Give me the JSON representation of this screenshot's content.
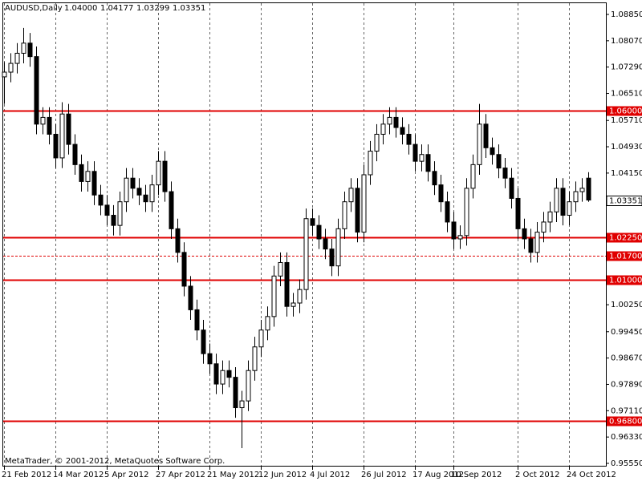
{
  "chart_data": {
    "type": "candlestick",
    "symbol": "AUDUSD,Daily",
    "ohlc_labels": [
      "1.04000",
      "1.04177",
      "1.03299",
      "1.03351"
    ],
    "copyright": "MetaTrader, © 2001-2012, MetaQuotes Software Corp.",
    "categories": [
      "21 Feb 2012",
      null,
      null,
      null,
      null,
      null,
      null,
      null,
      "14 Mar 2012",
      null,
      null,
      null,
      null,
      null,
      null,
      null,
      "5 Apr 2012",
      null,
      null,
      null,
      null,
      null,
      null,
      null,
      "27 Apr 2012",
      null,
      null,
      null,
      null,
      null,
      null,
      null,
      "21 May 2012",
      null,
      null,
      null,
      null,
      null,
      null,
      null,
      "12 Jun 2012",
      null,
      null,
      null,
      null,
      null,
      null,
      null,
      "4 Jul 2012",
      null,
      null,
      null,
      null,
      null,
      null,
      null,
      "26 Jul 2012",
      null,
      null,
      null,
      null,
      null,
      null,
      null,
      "17 Aug 2012",
      null,
      null,
      null,
      null,
      null,
      "10 Sep 2012",
      null,
      null,
      null,
      null,
      null,
      null,
      null,
      null,
      null,
      "2 Oct 2012",
      null,
      null,
      null,
      null,
      null,
      null,
      null,
      "24 Oct 2012",
      null,
      null,
      null
    ],
    "open": [
      1.07,
      1.0714,
      1.074,
      1.077,
      1.08,
      1.076,
      1.056,
      1.058,
      1.053,
      1.046,
      1.059,
      1.05,
      1.044,
      1.039,
      1.042,
      1.035,
      1.032,
      1.029,
      1.026,
      1.033,
      1.04,
      1.037,
      1.035,
      1.033,
      1.038,
      1.045,
      1.036,
      1.025,
      1.018,
      1.008,
      1.001,
      0.995,
      0.988,
      0.985,
      0.979,
      0.983,
      0.981,
      0.972,
      0.974,
      0.983,
      0.99,
      0.995,
      0.999,
      1.011,
      1.015,
      1.002,
      1.003,
      1.007,
      1.028,
      1.026,
      1.022,
      1.019,
      1.014,
      1.025,
      1.033,
      1.037,
      1.024,
      1.041,
      1.048,
      1.053,
      1.056,
      1.058,
      1.055,
      1.053,
      1.05,
      1.045,
      1.047,
      1.042,
      1.038,
      1.033,
      1.027,
      1.022,
      1.023,
      1.037,
      1.044,
      1.056,
      1.049,
      1.047,
      1.043,
      1.04,
      1.034,
      1.025,
      1.022,
      1.018,
      1.024,
      1.027,
      1.03,
      1.037,
      1.029,
      1.033,
      1.036,
      1.04
    ],
    "high": [
      1.0744,
      1.077,
      1.08,
      1.0845,
      1.083,
      1.079,
      1.061,
      1.061,
      1.056,
      1.0625,
      1.062,
      1.053,
      1.047,
      1.045,
      1.045,
      1.038,
      1.035,
      1.032,
      1.036,
      1.043,
      1.043,
      1.04,
      1.038,
      1.041,
      1.048,
      1.048,
      1.039,
      1.028,
      1.021,
      1.011,
      1.004,
      0.998,
      0.991,
      0.988,
      0.986,
      0.986,
      0.984,
      0.977,
      0.986,
      0.993,
      0.998,
      1.002,
      1.014,
      1.018,
      1.018,
      1.006,
      1.01,
      1.031,
      1.031,
      1.029,
      1.025,
      1.022,
      1.028,
      1.036,
      1.04,
      1.04,
      1.044,
      1.051,
      1.056,
      1.059,
      1.061,
      1.061,
      1.058,
      1.056,
      1.053,
      1.05,
      1.05,
      1.045,
      1.041,
      1.036,
      1.03,
      1.026,
      1.04,
      1.047,
      1.062,
      1.059,
      1.052,
      1.05,
      1.046,
      1.043,
      1.037,
      1.028,
      1.025,
      1.027,
      1.03,
      1.033,
      1.04,
      1.04,
      1.036,
      1.039,
      1.04,
      1.04177
    ],
    "low": [
      1.062,
      1.0684,
      1.071,
      1.074,
      1.073,
      1.053,
      1.053,
      1.05,
      1.043,
      1.043,
      1.047,
      1.041,
      1.036,
      1.036,
      1.032,
      1.029,
      1.026,
      1.023,
      1.023,
      1.03,
      1.034,
      1.032,
      1.03,
      1.03,
      1.035,
      1.033,
      1.022,
      1.015,
      1.005,
      0.998,
      0.992,
      0.985,
      0.982,
      0.976,
      0.976,
      0.978,
      0.969,
      0.96,
      0.971,
      0.98,
      0.987,
      0.992,
      0.996,
      1.008,
      0.999,
      0.999,
      1.0,
      1.004,
      1.023,
      1.019,
      1.016,
      1.011,
      1.011,
      1.022,
      1.03,
      1.021,
      1.021,
      1.038,
      1.045,
      1.05,
      1.053,
      1.052,
      1.05,
      1.047,
      1.042,
      1.042,
      1.039,
      1.035,
      1.03,
      1.024,
      1.019,
      1.019,
      1.02,
      1.034,
      1.041,
      1.046,
      1.044,
      1.04,
      1.037,
      1.031,
      1.022,
      1.019,
      1.015,
      1.015,
      1.021,
      1.024,
      1.027,
      1.026,
      1.026,
      1.03,
      1.033,
      1.03299
    ],
    "close": [
      1.0714,
      1.074,
      1.077,
      1.08,
      1.076,
      1.056,
      1.058,
      1.053,
      1.046,
      1.059,
      1.05,
      1.044,
      1.039,
      1.042,
      1.035,
      1.032,
      1.029,
      1.026,
      1.033,
      1.04,
      1.037,
      1.035,
      1.033,
      1.038,
      1.045,
      1.036,
      1.025,
      1.018,
      1.008,
      1.001,
      0.995,
      0.988,
      0.985,
      0.979,
      0.983,
      0.981,
      0.972,
      0.974,
      0.983,
      0.99,
      0.995,
      0.999,
      1.011,
      1.015,
      1.002,
      1.003,
      1.007,
      1.028,
      1.026,
      1.022,
      1.019,
      1.014,
      1.025,
      1.033,
      1.037,
      1.024,
      1.041,
      1.048,
      1.053,
      1.056,
      1.058,
      1.055,
      1.053,
      1.05,
      1.045,
      1.047,
      1.042,
      1.038,
      1.033,
      1.027,
      1.022,
      1.023,
      1.037,
      1.044,
      1.056,
      1.049,
      1.047,
      1.043,
      1.04,
      1.034,
      1.025,
      1.022,
      1.018,
      1.024,
      1.027,
      1.03,
      1.037,
      1.029,
      1.033,
      1.036,
      1.037,
      1.03351
    ],
    "ylim": [
      0.9555,
      1.0885
    ],
    "yticks": [
      {
        "value": 1.0885,
        "label": "1.08850"
      },
      {
        "value": 1.0807,
        "label": "1.08070"
      },
      {
        "value": 1.0729,
        "label": "1.07290"
      },
      {
        "value": 1.0651,
        "label": "1.06510"
      },
      {
        "value": 1.0571,
        "label": "1.05710"
      },
      {
        "value": 1.0493,
        "label": "1.04930"
      },
      {
        "value": 1.0415,
        "label": "1.04150"
      },
      {
        "value": 1.0025,
        "label": "1.00250"
      },
      {
        "value": 0.9945,
        "label": "0.99450"
      },
      {
        "value": 0.9867,
        "label": "0.98670"
      },
      {
        "value": 0.9789,
        "label": "0.97890"
      },
      {
        "value": 0.9711,
        "label": "0.97110"
      },
      {
        "value": 0.9633,
        "label": "0.96330"
      },
      {
        "value": 0.9555,
        "label": "0.95550"
      }
    ],
    "levels": [
      {
        "value": 1.06,
        "label": "1.06000",
        "style": "solid"
      },
      {
        "value": 1.0225,
        "label": "1.02250",
        "style": "solid"
      },
      {
        "value": 1.017,
        "label": "1.01700",
        "style": "dashed"
      },
      {
        "value": 1.01,
        "label": "1.01000",
        "style": "solid"
      },
      {
        "value": 0.968,
        "label": "0.96800",
        "style": "solid"
      }
    ],
    "level_color": "#e00000",
    "up_color": "#ffffff",
    "down_color": "#000000",
    "grid": true
  }
}
